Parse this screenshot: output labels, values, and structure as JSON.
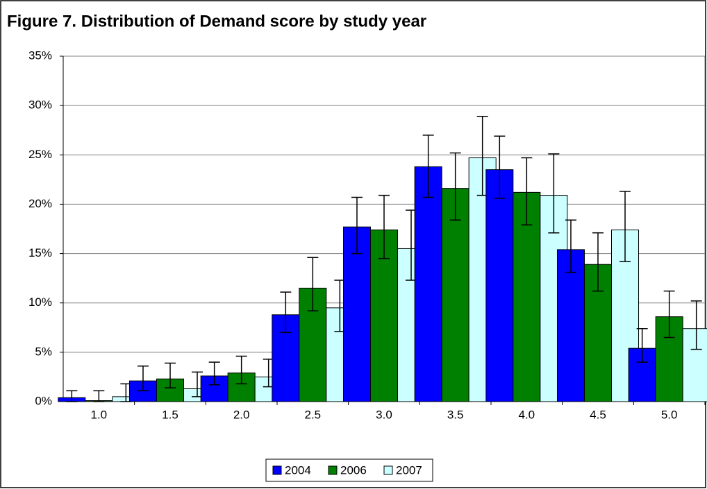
{
  "chart_data": {
    "type": "bar",
    "title": "Figure 7. Distribution of Demand score by study year",
    "categories": [
      "1.0",
      "1.5",
      "2.0",
      "2.5",
      "3.0",
      "3.5",
      "4.0",
      "4.5",
      "5.0"
    ],
    "series": [
      {
        "name": "2004",
        "color": "#0000ff",
        "values": [
          0.4,
          2.1,
          2.6,
          8.8,
          17.7,
          23.8,
          23.5,
          15.4,
          5.4
        ],
        "lower": [
          0,
          1.1,
          1.7,
          7.0,
          15.0,
          20.7,
          20.6,
          13.1,
          4.0
        ],
        "upper": [
          1.1,
          3.6,
          4.0,
          11.1,
          20.7,
          27.0,
          26.9,
          18.4,
          7.4
        ]
      },
      {
        "name": "2006",
        "color": "#008000",
        "values": [
          0.1,
          2.3,
          2.9,
          11.5,
          17.4,
          21.6,
          21.2,
          13.9,
          8.6
        ],
        "lower": [
          0,
          1.4,
          1.8,
          9.2,
          14.5,
          18.4,
          17.9,
          11.2,
          6.5
        ],
        "upper": [
          1.1,
          3.9,
          4.6,
          14.6,
          20.9,
          25.2,
          24.7,
          17.1,
          11.2
        ]
      },
      {
        "name": "2007",
        "color": "#ccffff",
        "values": [
          0.5,
          1.3,
          2.5,
          9.5,
          15.5,
          24.7,
          20.9,
          17.4,
          7.4
        ],
        "lower": [
          0,
          0.5,
          1.5,
          7.1,
          12.3,
          20.9,
          17.1,
          14.2,
          5.3
        ],
        "upper": [
          1.8,
          3.0,
          4.3,
          12.3,
          19.4,
          28.9,
          25.1,
          21.3,
          10.2
        ]
      }
    ],
    "ylim": [
      0,
      35
    ],
    "yticks": [
      {
        "value": 0,
        "label": "0%"
      },
      {
        "value": 5,
        "label": "5%"
      },
      {
        "value": 10,
        "label": "10%"
      },
      {
        "value": 15,
        "label": "15%"
      },
      {
        "value": 20,
        "label": "20%"
      },
      {
        "value": 25,
        "label": "25%"
      },
      {
        "value": 30,
        "label": "30%"
      },
      {
        "value": 35,
        "label": "35%"
      }
    ],
    "grid": true,
    "legend": "bottom"
  }
}
